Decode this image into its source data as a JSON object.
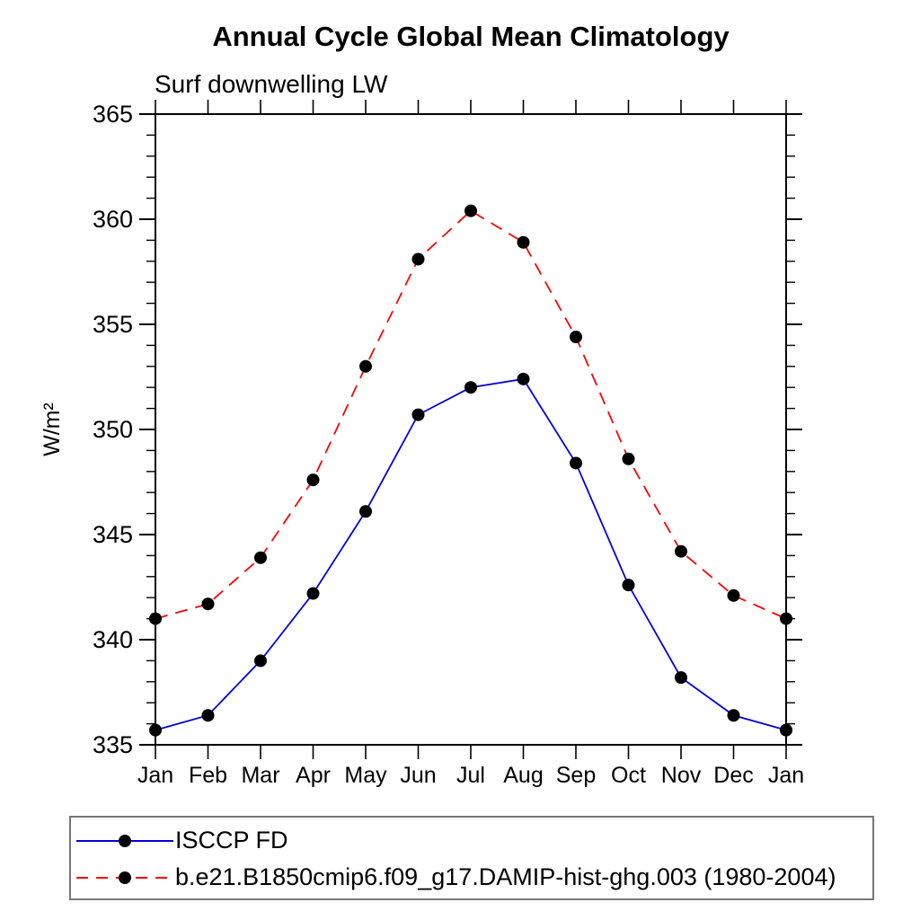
{
  "header": {
    "title": "Annual Cycle Global Mean Climatology",
    "subtitle": "Surf downwelling LW"
  },
  "chart_data": {
    "type": "line",
    "title": "Annual Cycle Global Mean Climatology",
    "subtitle": "Surf downwelling LW",
    "xlabel": "",
    "ylabel": "W/m²",
    "categories": [
      "Jan",
      "Feb",
      "Mar",
      "Apr",
      "May",
      "Jun",
      "Jul",
      "Aug",
      "Sep",
      "Oct",
      "Nov",
      "Dec",
      "Jan"
    ],
    "ylim": [
      335,
      365
    ],
    "y_major_step": 5,
    "y_minor_step": 1,
    "y_tick_labels": [
      "335",
      "340",
      "345",
      "350",
      "355",
      "360",
      "365"
    ],
    "grid": false,
    "legend_position": "bottom-left-box",
    "frame_color": "#000000",
    "marker_color": "#000000",
    "series": [
      {
        "name": "ISCCP FD",
        "color": "#0000E0",
        "line_style": "solid",
        "marker": "circle",
        "values": [
          335.7,
          336.4,
          339.0,
          342.2,
          346.1,
          350.7,
          352.0,
          352.4,
          348.4,
          342.6,
          338.2,
          336.4,
          335.7
        ]
      },
      {
        "name": "b.e21.B1850cmip6.f09_g17.DAMIP-hist-ghg.003 (1980-2004)",
        "color": "#FF0000",
        "line_style": "dashed",
        "marker": "circle",
        "values": [
          341.0,
          341.7,
          343.9,
          347.6,
          353.0,
          358.1,
          360.4,
          358.9,
          354.4,
          348.6,
          344.2,
          342.1,
          341.0
        ]
      }
    ]
  }
}
